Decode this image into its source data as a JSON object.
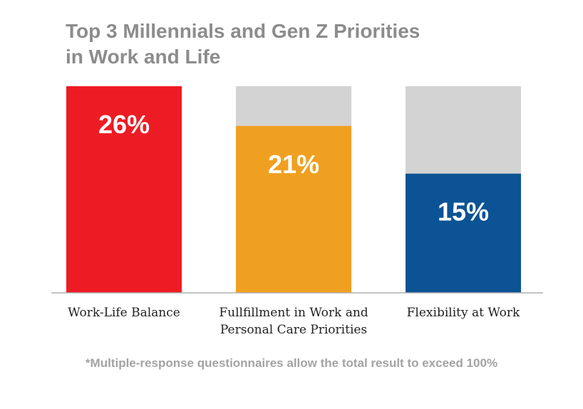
{
  "title": {
    "line1": "Top 3 Millennials and Gen Z Priorities",
    "line2": "in Work and Life"
  },
  "footnote": "*Multiple-response questionnaires allow the total result to exceed 100%",
  "chart_data": {
    "type": "bar",
    "categories": [
      [
        "Work-Life Balance"
      ],
      [
        "Fullfillment in Work and",
        "Personal Care Priorities"
      ],
      [
        "Flexibility at Work"
      ]
    ],
    "values": [
      26,
      21,
      15
    ],
    "value_labels": [
      "26%",
      "21%",
      "15%"
    ],
    "ylim": [
      0,
      26
    ],
    "grid": false,
    "legend": "none",
    "colors": [
      "#ed1c24",
      "#f0a021",
      "#0b5394"
    ],
    "track_color": "#d3d3d3",
    "baseline_color": "#b0b0b0"
  }
}
